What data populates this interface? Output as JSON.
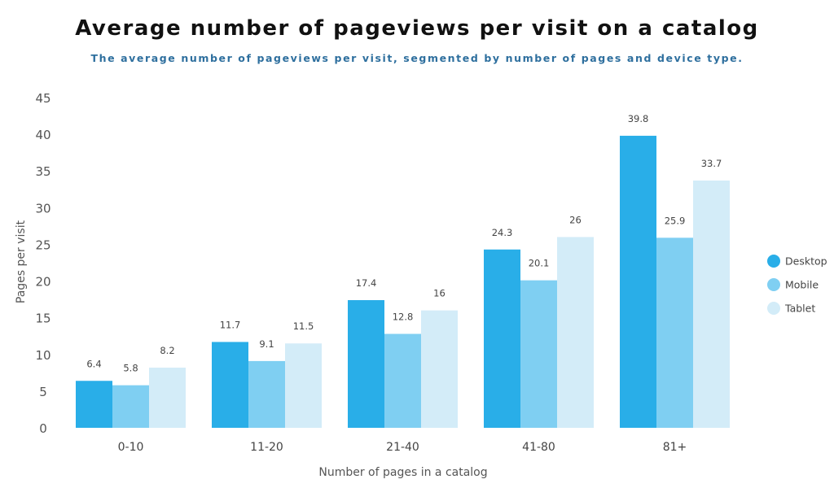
{
  "chart_data": {
    "type": "bar",
    "title": "Average number of pageviews per visit on a catalog",
    "subtitle": "The average number of pageviews per visit, segmented by number of pages and device type.",
    "xlabel": "Number of pages in a catalog",
    "ylabel": "Pages per visit",
    "ylim": [
      0,
      45
    ],
    "yticks": [
      "0",
      "5",
      "10",
      "15",
      "20",
      "25",
      "30",
      "35",
      "40",
      "45"
    ],
    "grid": false,
    "legend_position": "right",
    "categories": [
      "0-10",
      "11-20",
      "21-40",
      "41-80",
      "81+"
    ],
    "series": [
      {
        "name": "Desktop",
        "color": "#29aee8",
        "values": [
          6.4,
          11.7,
          17.4,
          24.3,
          39.8
        ]
      },
      {
        "name": "Mobile",
        "color": "#7fcff2",
        "values": [
          5.8,
          9.1,
          12.8,
          20.1,
          25.9
        ]
      },
      {
        "name": "Tablet",
        "color": "#d3ecf8",
        "values": [
          8.2,
          11.5,
          16,
          26,
          33.7
        ]
      }
    ]
  }
}
